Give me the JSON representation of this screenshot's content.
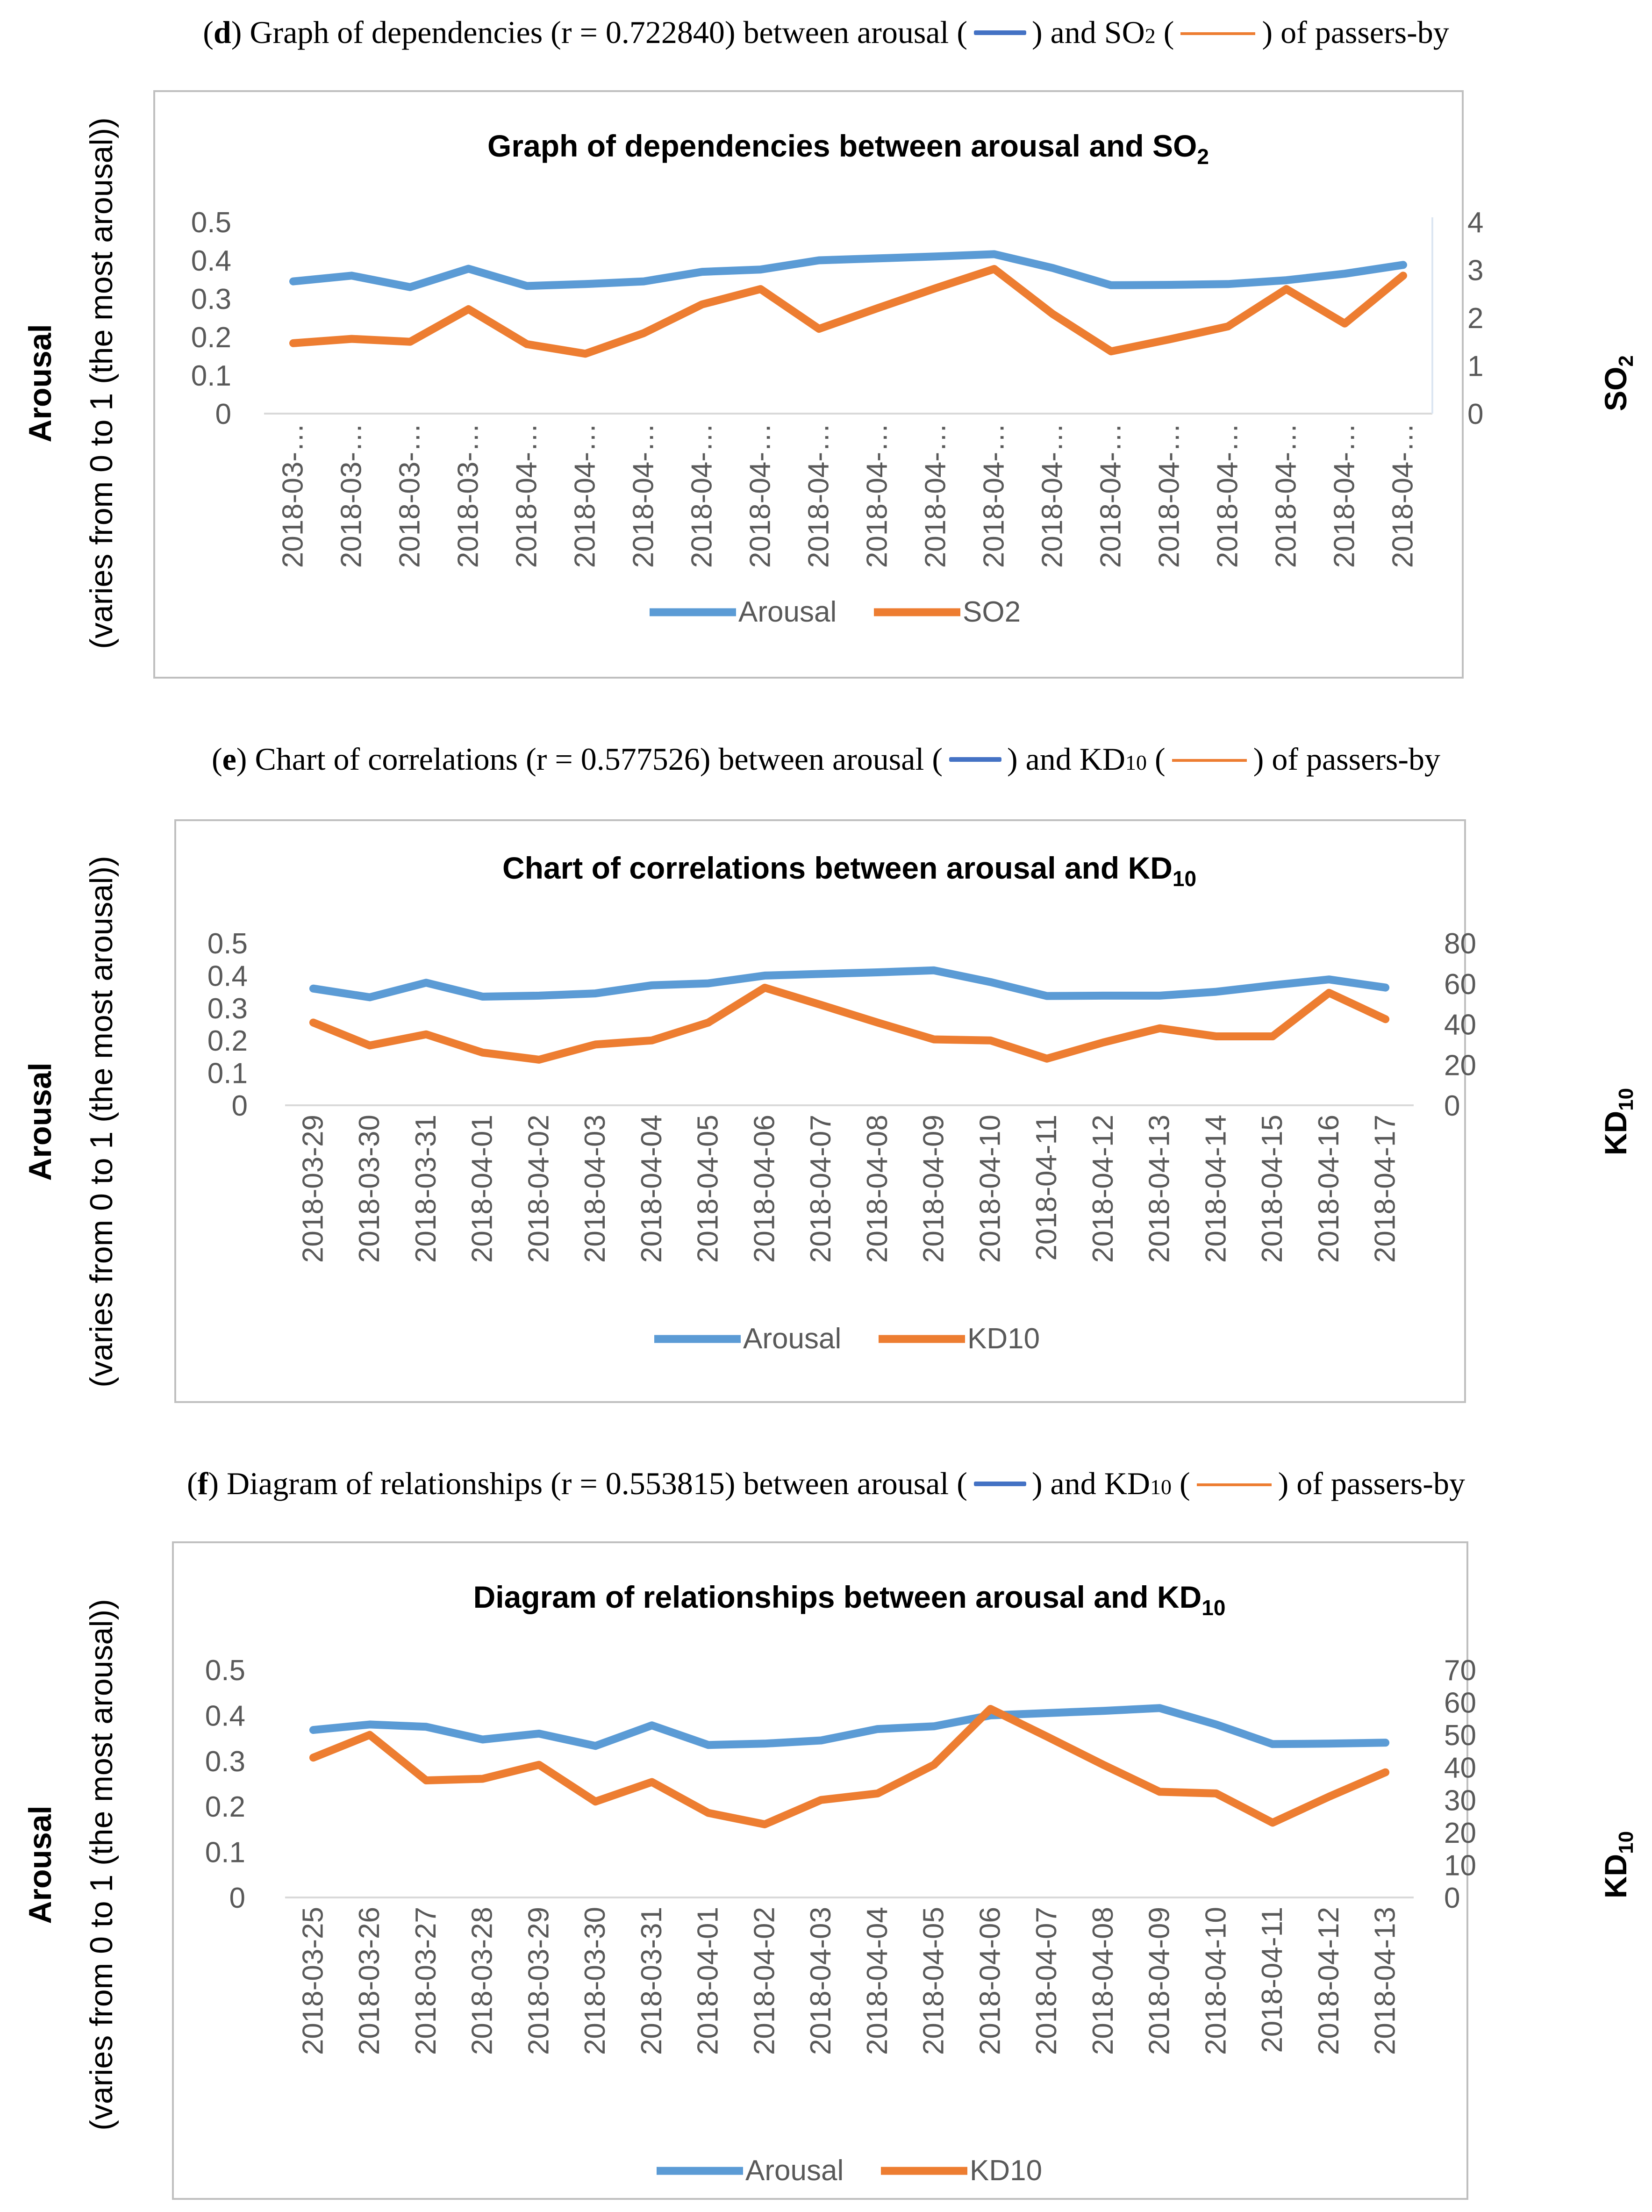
{
  "colors": {
    "arousal": "#5B9BD5",
    "secondary": "#ED7D31",
    "caption_blue": "#4472C4",
    "caption_orange": "#ED7D31",
    "axis": "#D9D9D9",
    "frame": "#BFBFBF",
    "tick_text": "#595959"
  },
  "panels": [
    {
      "caption": {
        "letter": "d",
        "before_r": " Graph of dependencies (r = 0.722840) between arousal (",
        "mid": ") and SO",
        "mid_sub": "2",
        "after": " (",
        "end": ") of passers-by"
      },
      "left_label_bold": "Arousal",
      "left_label_paren": "(varies from 0 to 1 (the most arousal))",
      "right_label": "SO",
      "right_label_sub": "2"
    },
    {
      "caption": {
        "letter": "e",
        "before_r": " Chart of correlations (r = 0.577526) between arousal (",
        "mid": ") and KD",
        "mid_sub": "10",
        "after": " (",
        "end": ") of passers-by"
      },
      "left_label_bold": "Arousal",
      "left_label_paren": "(varies from 0 to 1 (the most arousal))",
      "right_label": "KD",
      "right_label_sub": "10"
    },
    {
      "caption": {
        "letter": "f",
        "before_r": " Diagram of relationships (r = 0.553815) between arousal (",
        "mid": ") and KD",
        "mid_sub": "10",
        "after": " (",
        "end": ") of passers-by"
      },
      "left_label_bold": "Arousal",
      "left_label_paren": "(varies from 0 to 1 (the most arousal))",
      "right_label": "KD",
      "right_label_sub": "10"
    }
  ],
  "chart_data": [
    {
      "type": "line",
      "title": "Graph of dependencies between arousal and SO",
      "title_sub": "2",
      "categories": [
        "2018-03-…",
        "2018-03-…",
        "2018-03-…",
        "2018-03-…",
        "2018-04-…",
        "2018-04-…",
        "2018-04-…",
        "2018-04-…",
        "2018-04-…",
        "2018-04-…",
        "2018-04-…",
        "2018-04-…",
        "2018-04-…",
        "2018-04-…",
        "2018-04-…",
        "2018-04-…",
        "2018-04-…",
        "2018-04-…",
        "2018-04-…",
        "2018-04-…"
      ],
      "y_ticks": [
        "0",
        "0.1",
        "0.2",
        "0.3",
        "0.4",
        "0.5"
      ],
      "y2_ticks": [
        "0",
        "1",
        "2",
        "3",
        "4"
      ],
      "ylim": [
        0,
        0.5
      ],
      "y2lim": [
        0,
        4
      ],
      "series": [
        {
          "name": "Arousal",
          "axis": "left",
          "values": [
            0.345,
            0.36,
            0.33,
            0.378,
            0.333,
            0.338,
            0.345,
            0.37,
            0.376,
            0.4,
            0.405,
            0.41,
            0.416,
            0.38,
            0.335,
            0.336,
            0.338,
            0.348,
            0.365,
            0.388
          ]
        },
        {
          "name": "SO2",
          "axis": "right",
          "values": [
            1.47,
            1.56,
            1.5,
            2.18,
            1.45,
            1.25,
            1.68,
            2.28,
            2.6,
            1.77,
            2.2,
            2.62,
            3.02,
            2.08,
            1.3,
            1.55,
            1.82,
            2.6,
            1.88,
            2.88
          ]
        }
      ],
      "legend": [
        "Arousal",
        "SO2"
      ],
      "legend_position": "bottom"
    },
    {
      "type": "line",
      "title": "Chart of correlations between arousal and KD",
      "title_sub": "10",
      "categories": [
        "2018-03-29",
        "2018-03-30",
        "2018-03-31",
        "2018-04-01",
        "2018-04-02",
        "2018-04-03",
        "2018-04-04",
        "2018-04-05",
        "2018-04-06",
        "2018-04-07",
        "2018-04-08",
        "2018-04-09",
        "2018-04-10",
        "2018-04-11",
        "2018-04-12",
        "2018-04-13",
        "2018-04-14",
        "2018-04-15",
        "2018-04-16",
        "2018-04-17"
      ],
      "y_ticks": [
        "0",
        "0.1",
        "0.2",
        "0.3",
        "0.4",
        "0.5"
      ],
      "y2_ticks": [
        "0",
        "20",
        "40",
        "60",
        "80"
      ],
      "ylim": [
        0,
        0.5
      ],
      "y2lim": [
        0,
        80
      ],
      "series": [
        {
          "name": "Arousal",
          "axis": "left",
          "values": [
            0.36,
            0.333,
            0.378,
            0.335,
            0.338,
            0.345,
            0.37,
            0.376,
            0.4,
            0.405,
            0.41,
            0.416,
            0.38,
            0.337,
            0.338,
            0.338,
            0.35,
            0.37,
            0.388,
            0.363
          ]
        },
        {
          "name": "KD10",
          "axis": "right",
          "values": [
            40.8,
            29.5,
            35,
            26,
            22.5,
            30,
            32,
            40.8,
            58,
            49.5,
            40.8,
            32.5,
            32,
            23,
            31,
            38,
            34,
            34,
            55.5,
            42.5
          ]
        }
      ],
      "legend": [
        "Arousal",
        "KD10"
      ],
      "legend_position": "bottom"
    },
    {
      "type": "line",
      "title": "Diagram of relationships between arousal and KD",
      "title_sub": "10",
      "categories": [
        "2018-03-25",
        "2018-03-26",
        "2018-03-27",
        "2018-03-28",
        "2018-03-29",
        "2018-03-30",
        "2018-03-31",
        "2018-04-01",
        "2018-04-02",
        "2018-04-03",
        "2018-04-04",
        "2018-04-05",
        "2018-04-06",
        "2018-04-07",
        "2018-04-08",
        "2018-04-09",
        "2018-04-10",
        "2018-04-11",
        "2018-04-12",
        "2018-04-13"
      ],
      "y_ticks": [
        "0",
        "0.1",
        "0.2",
        "0.3",
        "0.4",
        "0.5"
      ],
      "y2_ticks": [
        "0",
        "10",
        "20",
        "30",
        "40",
        "50",
        "60",
        "70"
      ],
      "ylim": [
        0,
        0.5
      ],
      "y2lim": [
        0,
        70
      ],
      "series": [
        {
          "name": "Arousal",
          "axis": "left",
          "values": [
            0.368,
            0.38,
            0.375,
            0.347,
            0.36,
            0.333,
            0.378,
            0.335,
            0.338,
            0.345,
            0.37,
            0.376,
            0.4,
            0.405,
            0.41,
            0.416,
            0.38,
            0.337,
            0.338,
            0.34
          ]
        },
        {
          "name": "KD10",
          "axis": "right",
          "values": [
            43,
            50,
            36,
            36.5,
            40.8,
            29.5,
            35.5,
            26,
            22.5,
            30,
            32,
            40.8,
            58,
            49.5,
            40.8,
            32.5,
            32,
            23,
            31,
            38.5
          ]
        }
      ],
      "legend": [
        "Arousal",
        "KD10"
      ],
      "legend_position": "bottom"
    }
  ]
}
